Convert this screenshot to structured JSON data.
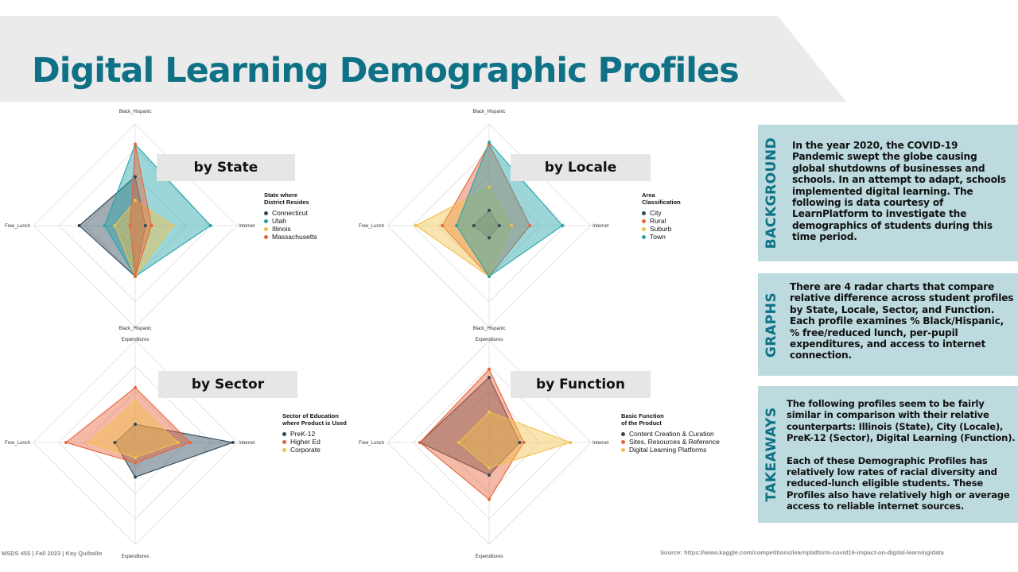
{
  "title": "Digital Learning Demographic Profiles",
  "colors": {
    "title": "#0e7186",
    "band": "#ebebeb",
    "info_box": "#bddbdf",
    "series_dark": "#2f4858",
    "series_red": "#e8643c",
    "series_yellow": "#f2c04c",
    "series_teal": "#26a4a9"
  },
  "axes": [
    "Black_Hispanic",
    "Internet",
    "Expenditures",
    "Free_Lunch"
  ],
  "chart_data": [
    {
      "type": "radar",
      "heading": "by State",
      "axes": [
        "Black_Hispanic",
        "Internet",
        "Expenditures",
        "Free_Lunch"
      ],
      "legend_title": "State where\nDistrict Resides",
      "series": [
        {
          "name": "Connecticut",
          "color": "#2f4858",
          "values": [
            0.48,
            0.1,
            0.5,
            0.55
          ]
        },
        {
          "name": "Utah",
          "color": "#26a4a9",
          "values": [
            0.8,
            0.74,
            0.5,
            0.3
          ]
        },
        {
          "name": "Illinois",
          "color": "#f2c04c",
          "values": [
            0.25,
            0.37,
            0.5,
            0.2
          ]
        },
        {
          "name": "Massachusetts",
          "color": "#e8643c",
          "values": [
            0.8,
            0.16,
            0.5,
            0.05
          ]
        }
      ]
    },
    {
      "type": "radar",
      "heading": "by Locale",
      "axes": [
        "Black_Hispanic",
        "Internet",
        "Expenditures",
        "Free_Lunch"
      ],
      "legend_title": "Area\nClassification",
      "series": [
        {
          "name": "City",
          "color": "#2f4858",
          "values": [
            0.15,
            0.1,
            0.12,
            0.15
          ]
        },
        {
          "name": "Rural",
          "color": "#e8643c",
          "values": [
            0.8,
            0.4,
            0.5,
            0.46
          ]
        },
        {
          "name": "Suburb",
          "color": "#f2c04c",
          "values": [
            0.38,
            0.22,
            0.5,
            0.72
          ]
        },
        {
          "name": "Town",
          "color": "#26a4a9",
          "values": [
            0.82,
            0.72,
            0.5,
            0.32
          ]
        }
      ]
    },
    {
      "type": "radar",
      "heading": "by Sector",
      "axes": [
        "Black_Hispanic",
        "Internet",
        "Expenditures",
        "Free_Lunch"
      ],
      "legend_title": "Sector of Education\nwhere Product  is Used",
      "series": [
        {
          "name": "PreK-12",
          "color": "#2f4858",
          "values": [
            0.18,
            0.96,
            0.34,
            0.2
          ]
        },
        {
          "name": "Higher Ed",
          "color": "#e8643c",
          "values": [
            0.54,
            0.54,
            0.2,
            0.68
          ]
        },
        {
          "name": "Corporate",
          "color": "#f2c04c",
          "values": [
            0.4,
            0.42,
            0.15,
            0.46
          ]
        }
      ]
    },
    {
      "type": "radar",
      "heading": "by Function",
      "axes": [
        "Black_Hispanic",
        "Internet",
        "Expenditures",
        "Free_Lunch"
      ],
      "legend_title": "Basic Function\nof the Product",
      "series": [
        {
          "name": "Content Creation & Curation",
          "color": "#2f4858",
          "values": [
            0.64,
            0.3,
            0.32,
            0.68
          ]
        },
        {
          "name": "Sites, Resources & Reference",
          "color": "#e8643c",
          "values": [
            0.72,
            0.34,
            0.56,
            0.68
          ]
        },
        {
          "name": "Digital Learning Platforms",
          "color": "#f2c04c",
          "values": [
            0.3,
            0.8,
            0.25,
            0.3
          ]
        }
      ]
    }
  ],
  "panels": {
    "background": {
      "heading": "BACKGROUND",
      "text": "In the year 2020, the COVID-19 Pandemic swept the globe causing global shutdowns of businesses and schools. In an attempt to adapt, schools implemented digital learning. The following is data courtesy of LearnPlatform to investigate the demographics of students during this time period."
    },
    "graphs": {
      "heading": "GRAPHS",
      "text": "There are 4 radar charts that compare relative difference across student profiles by State, Locale, Sector, and Function. Each profile examines % Black/Hispanic, % free/reduced lunch, per-pupil expenditures, and access to internet connection."
    },
    "takeaways": {
      "heading": "TAKEAWAYS",
      "text1": "The following profiles seem to be fairly similar in comparison with their relative counterparts: Illinois (State), City (Locale), PreK-12 (Sector), Digital Learning (Function).",
      "text2": "Each of these Demographic Profiles has relatively low rates of racial diversity and reduced-lunch eligible students. These Profiles also have relatively high or average access to reliable internet sources."
    }
  },
  "footer": {
    "left": "MSDS 455 | Fall 2023 | Kay Quiballo",
    "source": "Source: https://www.kaggle.com/competitions/learnplatform-covid19-impact-on-digital-learning/data"
  }
}
